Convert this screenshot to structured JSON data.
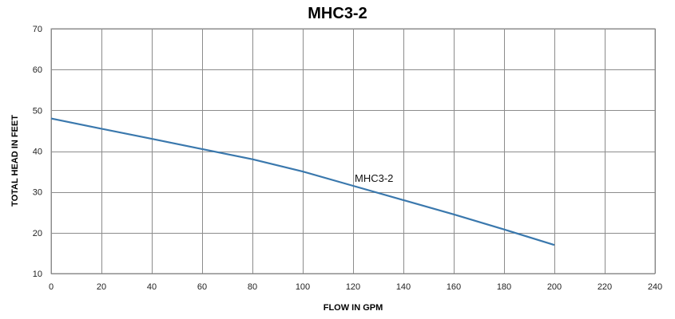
{
  "chart_data": {
    "type": "line",
    "title": "MHC3-2",
    "xlabel": "FLOW IN GPM",
    "ylabel": "TOTAL HEAD IN FEET",
    "xlim": [
      0,
      240
    ],
    "ylim": [
      10,
      70
    ],
    "x_ticks": [
      0,
      20,
      40,
      60,
      80,
      100,
      120,
      140,
      160,
      180,
      200,
      220,
      240
    ],
    "y_ticks": [
      10,
      20,
      30,
      40,
      50,
      60,
      70
    ],
    "grid": true,
    "series": [
      {
        "name": "MHC3-2",
        "color": "#3a78ad",
        "x": [
          0,
          20,
          40,
          60,
          80,
          100,
          120,
          140,
          160,
          180,
          200
        ],
        "y": [
          48,
          45.5,
          43,
          40.5,
          38,
          35,
          31.5,
          28,
          24.5,
          20.8,
          17
        ]
      }
    ]
  }
}
